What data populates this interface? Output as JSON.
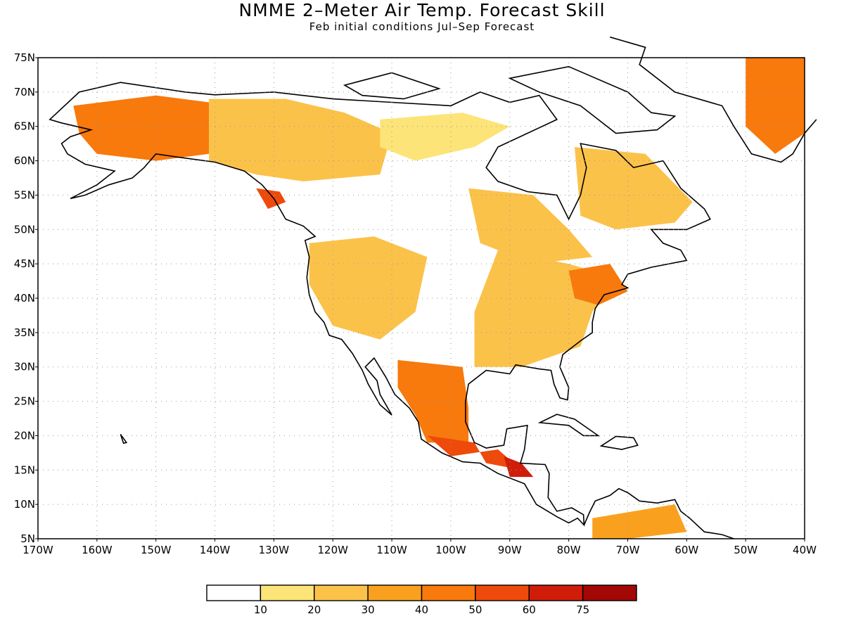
{
  "title": "NMME 2–Meter Air Temp. Forecast Skill",
  "subtitle": "Feb initial conditions  Jul–Sep Forecast",
  "map": {
    "lat_labels": [
      "75N",
      "70N",
      "65N",
      "60N",
      "55N",
      "50N",
      "45N",
      "40N",
      "35N",
      "30N",
      "25N",
      "20N",
      "15N",
      "10N",
      "5N"
    ],
    "lon_labels": [
      "170W",
      "160W",
      "150W",
      "140W",
      "130W",
      "120W",
      "110W",
      "100W",
      "90W",
      "80W",
      "70W",
      "60W",
      "50W",
      "40W"
    ],
    "lat_range": [
      5,
      75
    ],
    "lon_range": [
      -170,
      -40
    ],
    "grid": "dotted",
    "features": [
      "coastlines",
      "country-borders",
      "us-state-borders"
    ]
  },
  "colorbar": {
    "ticks": [
      "10",
      "20",
      "30",
      "40",
      "50",
      "60",
      "75"
    ],
    "colors": [
      "#ffffff",
      "#fde478",
      "#fbc24a",
      "#f9a11e",
      "#f8790c",
      "#ee4a0c",
      "#cf1d0a",
      "#a30806"
    ]
  }
}
